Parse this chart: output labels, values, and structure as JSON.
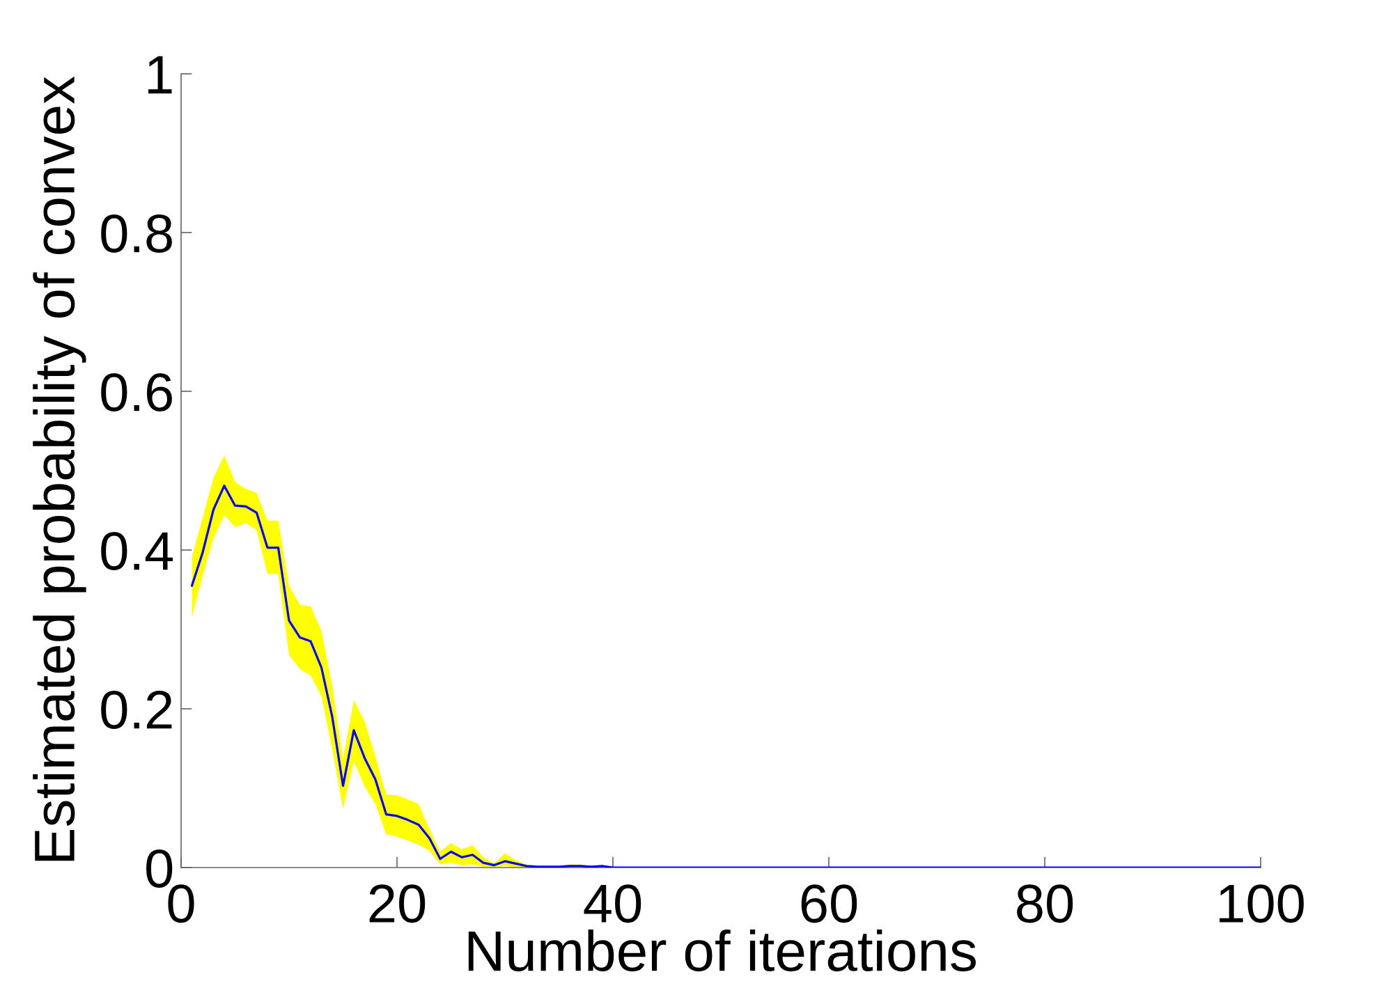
{
  "chart_data": {
    "type": "line",
    "xlabel": "Number of iterations",
    "ylabel": "Estimated probability of convex",
    "x": [
      1,
      2,
      3,
      4,
      5,
      6,
      7,
      8,
      9,
      10,
      11,
      12,
      13,
      14,
      15,
      16,
      17,
      18,
      19,
      20,
      21,
      22,
      23,
      24,
      25,
      26,
      27,
      28,
      29,
      30,
      31,
      32,
      33,
      34,
      35,
      36,
      37,
      38,
      39,
      40,
      41,
      42,
      43,
      44,
      45,
      46,
      47,
      48,
      49,
      50,
      51,
      52,
      53,
      54,
      55,
      56,
      57,
      58,
      59,
      60,
      61,
      62,
      63,
      64,
      65,
      66,
      67,
      68,
      69,
      70,
      71,
      72,
      73,
      74,
      75,
      76,
      77,
      78,
      79,
      80,
      81,
      82,
      83,
      84,
      85,
      86,
      87,
      88,
      89,
      90,
      91,
      92,
      93,
      94,
      95,
      96,
      97,
      98,
      99,
      100
    ],
    "series": [
      {
        "color": "#0000ff",
        "values": [
          0.355,
          0.397,
          0.451,
          0.481,
          0.456,
          0.455,
          0.447,
          0.403,
          0.403,
          0.311,
          0.29,
          0.285,
          0.252,
          0.19,
          0.103,
          0.173,
          0.138,
          0.111,
          0.067,
          0.065,
          0.06,
          0.054,
          0.037,
          0.011,
          0.02,
          0.013,
          0.016,
          0.006,
          0.003,
          0.008,
          0.005,
          0.002,
          0.001,
          0.001,
          0.001,
          0.002,
          0.002,
          0.001,
          0.002,
          0,
          0,
          0,
          0,
          0,
          0,
          0,
          0,
          0,
          0,
          0,
          0,
          0,
          0,
          0,
          0,
          0,
          0,
          0,
          0,
          0,
          0,
          0,
          0,
          0,
          0,
          0,
          0,
          0,
          0,
          0,
          0,
          0,
          0,
          0,
          0,
          0,
          0,
          0,
          0,
          0,
          0,
          0,
          0,
          0,
          0,
          0,
          0,
          0,
          0,
          0,
          0,
          0,
          0,
          0,
          0,
          0,
          0,
          0,
          0,
          0
        ],
        "upper": [
          0.391,
          0.441,
          0.491,
          0.519,
          0.486,
          0.477,
          0.472,
          0.437,
          0.437,
          0.355,
          0.331,
          0.329,
          0.298,
          0.229,
          0.137,
          0.211,
          0.184,
          0.14,
          0.092,
          0.091,
          0.086,
          0.08,
          0.049,
          0.02,
          0.031,
          0.023,
          0.028,
          0.013,
          0.005,
          0.018,
          0.009,
          0.004,
          0.002,
          0.002,
          0.002,
          0.004,
          0.004,
          0.002,
          0.003,
          0,
          0,
          0,
          0,
          0,
          0,
          0,
          0,
          0,
          0,
          0,
          0,
          0,
          0,
          0,
          0,
          0,
          0,
          0,
          0,
          0,
          0,
          0,
          0,
          0,
          0,
          0,
          0,
          0,
          0,
          0,
          0,
          0,
          0,
          0,
          0,
          0,
          0,
          0,
          0,
          0,
          0,
          0,
          0,
          0,
          0,
          0,
          0,
          0,
          0,
          0,
          0,
          0,
          0,
          0,
          0,
          0,
          0,
          0,
          0,
          0
        ],
        "lower": [
          0.315,
          0.368,
          0.415,
          0.444,
          0.429,
          0.434,
          0.425,
          0.37,
          0.37,
          0.268,
          0.25,
          0.242,
          0.216,
          0.149,
          0.074,
          0.134,
          0.102,
          0.08,
          0.042,
          0.039,
          0.034,
          0.029,
          0.021,
          0.004,
          0.006,
          0.003,
          0.004,
          0.001,
          0,
          0.002,
          0,
          0,
          0,
          0,
          0,
          0,
          0,
          0,
          0,
          0,
          0,
          0,
          0,
          0,
          0,
          0,
          0,
          0,
          0,
          0,
          0,
          0,
          0,
          0,
          0,
          0,
          0,
          0,
          0,
          0,
          0,
          0,
          0,
          0,
          0,
          0,
          0,
          0,
          0,
          0,
          0,
          0,
          0,
          0,
          0,
          0,
          0,
          0,
          0,
          0,
          0,
          0,
          0,
          0,
          0,
          0,
          0,
          0,
          0,
          0,
          0,
          0,
          0,
          0,
          0,
          0,
          0,
          0,
          0,
          0
        ]
      }
    ],
    "xlim": [
      0,
      100
    ],
    "xticks": [
      0,
      20,
      40,
      60,
      80,
      100
    ],
    "ylim": [
      0,
      1
    ],
    "yticks": [
      0,
      0.2,
      0.4,
      0.6,
      0.8,
      1
    ]
  }
}
